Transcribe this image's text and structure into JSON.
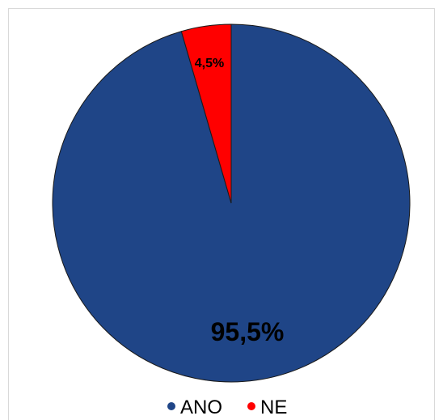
{
  "chart_data": {
    "type": "pie",
    "categories": [
      "ANO",
      "NE"
    ],
    "values": [
      95.5,
      4.5
    ],
    "data_labels": [
      "95,5%",
      "4,5%"
    ],
    "colors": [
      "#1F4587",
      "#FF0000"
    ],
    "legend": {
      "placement": "bottom",
      "items": [
        "ANO",
        "NE"
      ]
    },
    "title": "",
    "start_angle": "top",
    "direction": "counterclockwise-for-second-slice"
  }
}
